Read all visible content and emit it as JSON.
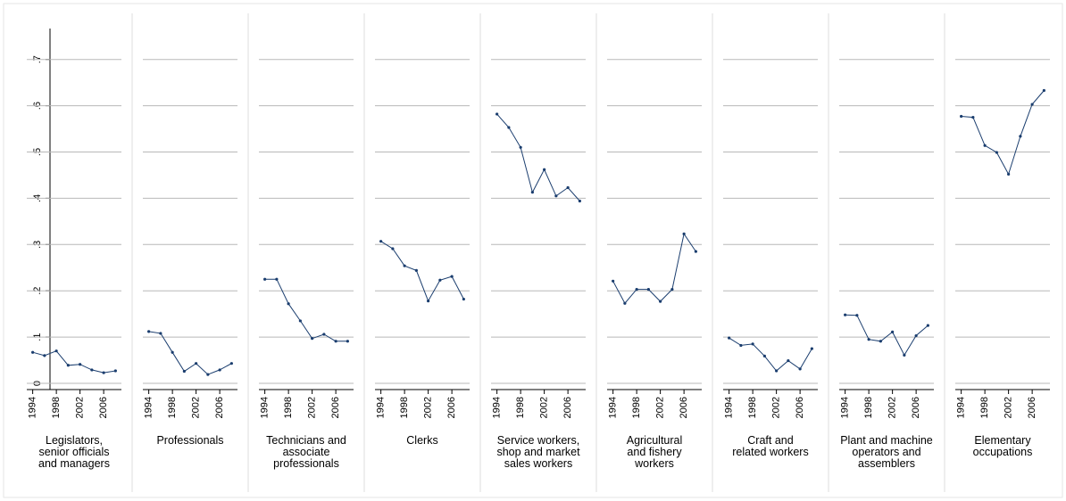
{
  "chart_data": {
    "type": "line",
    "colors": {
      "line": "#1a3d6e",
      "grid": "#b8b8b8",
      "axis": "#000000",
      "panel_border": "#dcdcdc",
      "outer_border": "#e6e6e6"
    },
    "y_ticks": [
      0,
      0.1,
      0.2,
      0.3,
      0.4,
      0.5,
      0.6,
      0.7
    ],
    "y_tick_labels": [
      "0",
      ".1",
      ".2",
      ".3",
      ".4",
      ".5",
      ".6",
      ".7"
    ],
    "ylim": [
      0,
      0.75
    ],
    "xlim": [
      1993,
      2009
    ],
    "x_ticks": [
      1994,
      1998,
      2002,
      2006
    ],
    "x_tick_labels": [
      "1994",
      "1998",
      "2002",
      "2006"
    ],
    "x": [
      1994,
      1996,
      1998,
      2000,
      2002,
      2004,
      2006,
      2008
    ],
    "grid": true,
    "legend": "none",
    "panels": [
      {
        "label": [
          "Legislators,",
          "senior officials",
          "and managers"
        ],
        "values": [
          0.067,
          0.06,
          0.07,
          0.039,
          0.041,
          0.029,
          0.023,
          0.027
        ]
      },
      {
        "label": [
          "Professionals"
        ],
        "values": [
          0.112,
          0.108,
          0.067,
          0.026,
          0.043,
          0.019,
          0.029,
          0.043
        ]
      },
      {
        "label": [
          "Technicians and",
          "associate",
          "professionals"
        ],
        "values": [
          0.225,
          0.225,
          0.172,
          0.135,
          0.097,
          0.106,
          0.091,
          0.091
        ]
      },
      {
        "label": [
          "Clerks"
        ],
        "values": [
          0.307,
          0.291,
          0.254,
          0.244,
          0.178,
          0.223,
          0.231,
          0.182
        ]
      },
      {
        "label": [
          "Service workers,",
          "shop and market",
          "sales workers"
        ],
        "values": [
          0.582,
          0.553,
          0.51,
          0.413,
          0.462,
          0.405,
          0.423,
          0.394
        ]
      },
      {
        "label": [
          "Agricultural",
          "and fishery",
          "workers"
        ],
        "values": [
          0.221,
          0.173,
          0.203,
          0.203,
          0.177,
          0.203,
          0.323,
          0.285
        ]
      },
      {
        "label": [
          "Craft and",
          "related workers"
        ],
        "values": [
          0.098,
          0.082,
          0.085,
          0.059,
          0.027,
          0.049,
          0.031,
          0.075
        ]
      },
      {
        "label": [
          "Plant and machine",
          "operators and",
          "assemblers"
        ],
        "values": [
          0.148,
          0.147,
          0.095,
          0.091,
          0.111,
          0.061,
          0.103,
          0.125
        ]
      },
      {
        "label": [
          "Elementary",
          "occupations"
        ],
        "values": [
          0.577,
          0.575,
          0.514,
          0.499,
          0.452,
          0.534,
          0.603,
          0.633
        ]
      }
    ]
  }
}
